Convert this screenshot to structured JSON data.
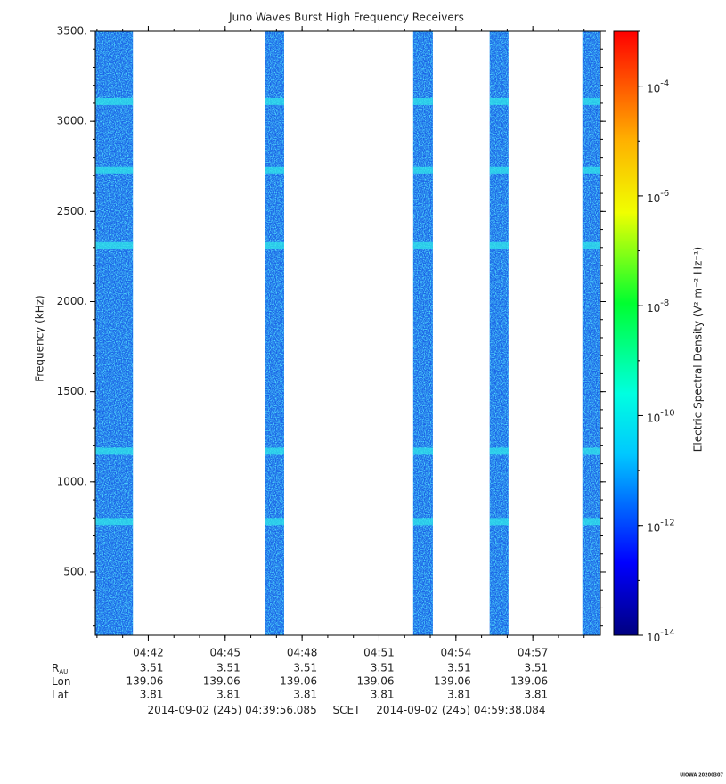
{
  "chart_data": {
    "type": "spectrogram",
    "title": "Juno Waves Burst High Frequency Receivers",
    "ylabel": "Frequency (kHz)",
    "ylim": [
      149,
      3500
    ],
    "yticks": [
      {
        "value": 500,
        "label": "500."
      },
      {
        "value": 1000,
        "label": "1000."
      },
      {
        "value": 1500,
        "label": "1500."
      },
      {
        "value": 2000,
        "label": "2000."
      },
      {
        "value": 2500,
        "label": "2500."
      },
      {
        "value": 3000,
        "label": "3000."
      },
      {
        "value": 3500,
        "label": "3500."
      }
    ],
    "xlim": [
      "2014-09-02 (245) 04:39:56.085",
      "2014-09-02 (245) 04:59:38.084"
    ],
    "xlim_separator": "SCET",
    "xticks": [
      "04:42",
      "04:45",
      "04:48",
      "04:51",
      "04:54",
      "04:57"
    ],
    "ephemeris": [
      {
        "label": "R",
        "sub": "AU",
        "values": [
          3.51,
          3.51,
          3.51,
          3.51,
          3.51,
          3.51
        ]
      },
      {
        "label": "Lon",
        "values": [
          139.06,
          139.06,
          139.06,
          139.06,
          139.06,
          139.06
        ]
      },
      {
        "label": "Lat",
        "values": [
          3.81,
          3.81,
          3.81,
          3.81,
          3.81,
          3.81
        ]
      }
    ],
    "bursts": [
      {
        "start": "04:39:56",
        "end": "04:41:24"
      },
      {
        "start": "04:46:34",
        "end": "04:47:18"
      },
      {
        "start": "04:52:20",
        "end": "04:53:06"
      },
      {
        "start": "04:55:19",
        "end": "04:56:03"
      },
      {
        "start": "04:58:56",
        "end": "04:59:38"
      }
    ],
    "bright_bands_khz": [
      3110,
      2730,
      2310,
      1170,
      780
    ],
    "zlabel": "Electric Spectral Density (V² m⁻² Hz⁻¹)",
    "zscale": "log",
    "zlim": [
      1e-14,
      0.001
    ],
    "zticks": [
      {
        "value": 1e-14,
        "label": "10",
        "exp": "-14"
      },
      {
        "value": 1e-12,
        "label": "10",
        "exp": "-12"
      },
      {
        "value": 1e-10,
        "label": "10",
        "exp": "-10"
      },
      {
        "value": 1e-08,
        "label": "10",
        "exp": "-8"
      },
      {
        "value": 1e-06,
        "label": "10",
        "exp": "-6"
      },
      {
        "value": 0.0001,
        "label": "10",
        "exp": "-4"
      }
    ],
    "credit": "UIOWA 20200307"
  }
}
